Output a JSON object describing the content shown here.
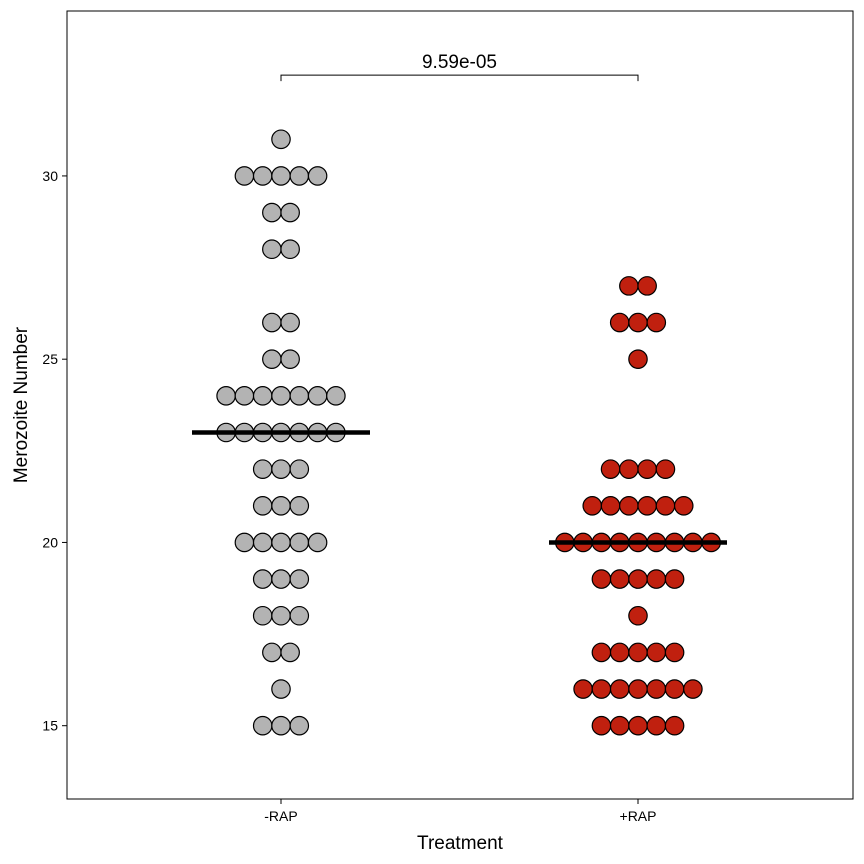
{
  "chart_data": {
    "type": "scatter",
    "subtype": "dotplot",
    "title": "",
    "xlabel": "Treatment",
    "ylabel": "Merozoite Number",
    "categories": [
      "-RAP",
      "+RAP"
    ],
    "ylim": [
      13,
      34.5
    ],
    "yticks": [
      15,
      20,
      25,
      30
    ],
    "grid": false,
    "legend": "none",
    "series": [
      {
        "group": "-RAP",
        "color": "#b3b3b3",
        "values": [
          31,
          30,
          30,
          30,
          30,
          30,
          29,
          29,
          28,
          28,
          26,
          26,
          25,
          25,
          24,
          24,
          24,
          24,
          24,
          24,
          24,
          23,
          23,
          23,
          23,
          23,
          23,
          23,
          22,
          22,
          22,
          21,
          21,
          21,
          20,
          20,
          20,
          20,
          20,
          19,
          19,
          19,
          18,
          18,
          18,
          17,
          17,
          16,
          15,
          15,
          15
        ],
        "median": 23
      },
      {
        "group": "+RAP",
        "color": "#c0200f",
        "values": [
          27,
          27,
          26,
          26,
          26,
          25,
          22,
          22,
          22,
          22,
          21,
          21,
          21,
          21,
          21,
          21,
          20,
          20,
          20,
          20,
          20,
          20,
          20,
          20,
          20,
          19,
          19,
          19,
          19,
          19,
          18,
          17,
          17,
          17,
          17,
          17,
          16,
          16,
          16,
          16,
          16,
          16,
          16,
          15,
          15,
          15,
          15,
          15
        ],
        "median": 20
      }
    ],
    "annotation": {
      "text": "9.59e-05",
      "between": [
        "-RAP",
        "+RAP"
      ],
      "y": 32.75
    }
  }
}
